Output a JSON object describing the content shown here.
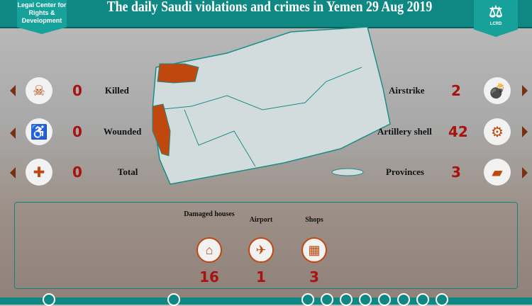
{
  "header": {
    "title": "The daily Saudi violations and crimes in Yemen 29 Aug 2019",
    "org_name": "Legal Center for Rights & Development",
    "logo_text": "LCRD"
  },
  "colors": {
    "teal": "#0f8783",
    "accent": "#c0470e",
    "number": "#a8120f"
  },
  "left_stats": [
    {
      "label": "Killed",
      "value": "0",
      "icon": "body-icon"
    },
    {
      "label": "Wounded",
      "value": "0",
      "icon": "injured-person-icon"
    },
    {
      "label": "Total",
      "value": "0",
      "icon": "casualties-icon"
    }
  ],
  "right_stats": [
    {
      "label": "Airstrike",
      "value": "2",
      "icon": "bomb-icon"
    },
    {
      "label": "Artillery shell",
      "value": "42",
      "icon": "cannon-icon"
    },
    {
      "label": "Provinces",
      "value": "3",
      "icon": "yemen-map-icon"
    }
  ],
  "damage": [
    {
      "label": "Damaged houses",
      "value": "16",
      "icon": "house-icon"
    },
    {
      "label": "Airport",
      "value": "1",
      "icon": "airplane-icon"
    },
    {
      "label": "Shops",
      "value": "3",
      "icon": "shop-icon"
    }
  ]
}
